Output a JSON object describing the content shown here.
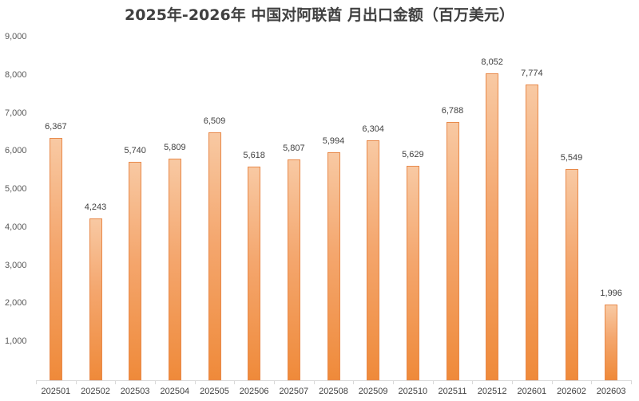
{
  "chart_data": {
    "type": "bar",
    "title": "2025年-2026年 中国对阿联酋 月出口金额（百万美元）",
    "xlabel": "",
    "ylabel": "",
    "ylim": [
      0,
      9000
    ],
    "yticks": [
      "1,000",
      "2,000",
      "3,000",
      "4,000",
      "5,000",
      "6,000",
      "7,000",
      "8,000",
      "9,000"
    ],
    "grid": false,
    "legend": null,
    "categories": [
      "202501",
      "202502",
      "202503",
      "202504",
      "202505",
      "202506",
      "202507",
      "202508",
      "202509",
      "202510",
      "202511",
      "202512",
      "202601",
      "202602",
      "202603"
    ],
    "values": [
      6367,
      4243,
      5740,
      5809,
      6509,
      5618,
      5807,
      5994,
      6304,
      5629,
      6788,
      8052,
      7774,
      5549,
      1996
    ],
    "value_labels": [
      "6,367",
      "4,243",
      "5,740",
      "5,809",
      "6,509",
      "5,618",
      "5,807",
      "5,994",
      "6,304",
      "5,629",
      "6,788",
      "8,052",
      "7,774",
      "5,549",
      "1,996"
    ],
    "bar_color": "#ef8a3a"
  }
}
